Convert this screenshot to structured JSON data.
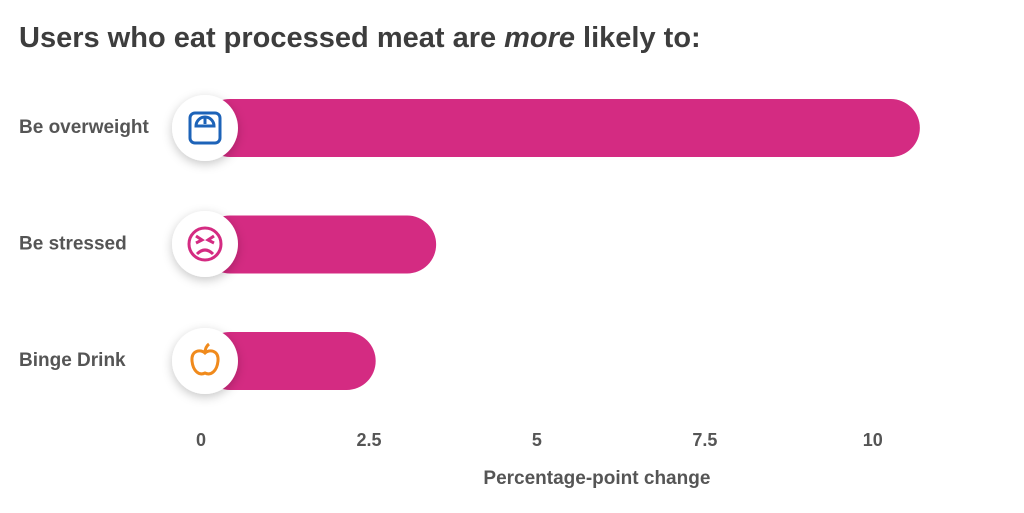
{
  "chart_data": {
    "type": "bar",
    "orientation": "horizontal",
    "title": [
      "Users who eat processed meat are",
      "more",
      "likely to:"
    ],
    "categories": [
      "Be overweight",
      "Be stressed",
      "Binge Drink"
    ],
    "values": [
      10.7,
      3.5,
      2.6
    ],
    "color": "#d42b82",
    "xlim": [
      0,
      11
    ],
    "xticks": [
      0,
      2.5,
      5,
      7.5,
      10
    ],
    "xlabel": "Percentage-point change",
    "grid": false
  }
}
